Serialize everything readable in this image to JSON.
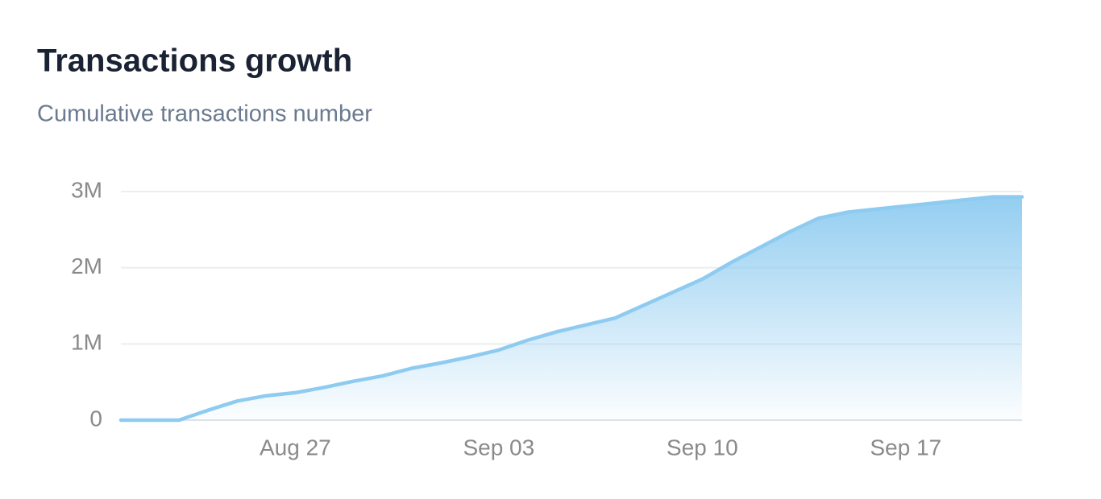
{
  "chart_data": {
    "type": "area",
    "title": "Transactions growth",
    "subtitle": "Cumulative transactions number",
    "categories": [
      null,
      null,
      null,
      null,
      null,
      null,
      "Aug 27",
      null,
      null,
      null,
      null,
      null,
      null,
      "Sep 03",
      null,
      null,
      null,
      null,
      null,
      null,
      "Sep 10",
      null,
      null,
      null,
      null,
      null,
      null,
      "Sep 17",
      null,
      null,
      null,
      null
    ],
    "series": [
      {
        "name": "Transactions",
        "color": "#8ecbf0",
        "values": [
          0,
          0,
          0,
          130000,
          250000,
          320000,
          360000,
          430000,
          510000,
          580000,
          680000,
          750000,
          830000,
          920000,
          1050000,
          1160000,
          1250000,
          1340000,
          1510000,
          1680000,
          1850000,
          2070000,
          2270000,
          2470000,
          2650000,
          2730000,
          2770000,
          2810000,
          2850000,
          2890000,
          2930000,
          2930000
        ]
      }
    ],
    "ylim": [
      0,
      3000000
    ],
    "yticks": [
      0,
      {
        "value": 1000000,
        "label": "1M"
      },
      {
        "value": 2000000,
        "label": "2M"
      },
      {
        "value": 3000000,
        "label": "3M"
      }
    ],
    "grid": true
  }
}
